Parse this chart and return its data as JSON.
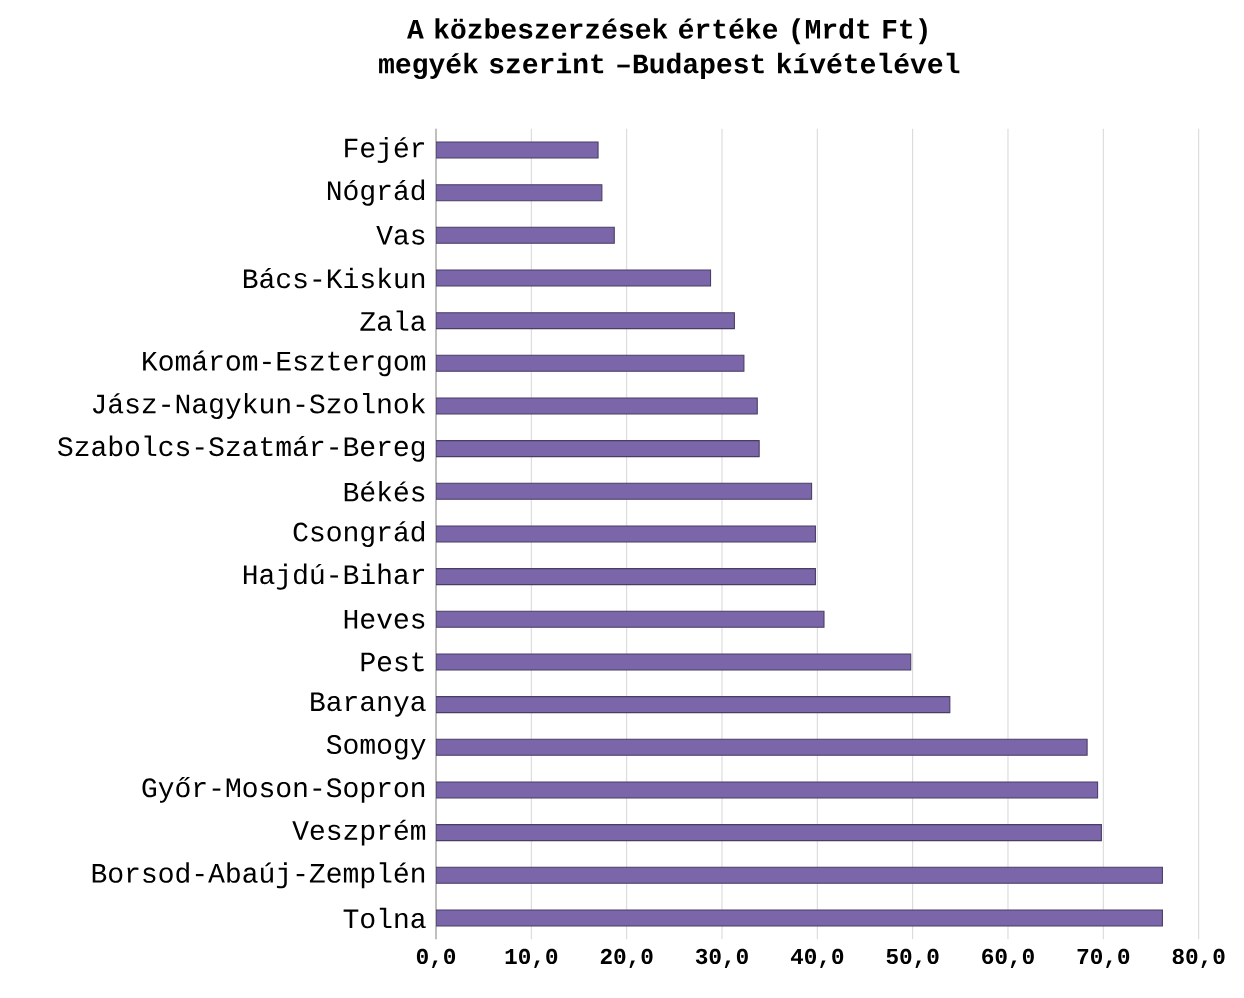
{
  "chart_data": {
    "type": "bar",
    "orientation": "horizontal",
    "title": "A közbeszerzések értéke (Mrdt Ft) megyék szerint –Budapest kívételével",
    "categories": [
      "Fejér",
      "Nógrád",
      "Vas",
      "Bács-Kiskun",
      "Zala",
      "Komárom-Esztergom",
      "Jász-Nagykun-Szolnok",
      "Szabolcs-Szatmár-Bereg",
      "Békés",
      "Csongrád",
      "Hajdú-Bihar",
      "Heves",
      "Pest",
      "Baranya",
      "Somogy",
      "Győr-Moson-Sopron",
      "Veszprém",
      "Borsod-Abaúj-Zemplén",
      "Tolna"
    ],
    "values": [
      17.0,
      17.4,
      18.7,
      28.8,
      31.3,
      32.3,
      33.7,
      33.9,
      39.4,
      39.8,
      39.8,
      40.7,
      49.8,
      53.9,
      68.3,
      69.4,
      69.8,
      76.2,
      76.2
    ],
    "color": "#7a66a8",
    "xlim": [
      0,
      80
    ],
    "xticks": [
      {
        "value": 0,
        "label": "0,0"
      },
      {
        "value": 10,
        "label": "10,0"
      },
      {
        "value": 20,
        "label": "20,0"
      },
      {
        "value": 30,
        "label": "30,0"
      },
      {
        "value": 40,
        "label": "40,0"
      },
      {
        "value": 50,
        "label": "50,0"
      },
      {
        "value": 60,
        "label": "60,0"
      },
      {
        "value": 70,
        "label": "70,0"
      },
      {
        "value": 80,
        "label": "80,0"
      }
    ],
    "grid": "x"
  }
}
